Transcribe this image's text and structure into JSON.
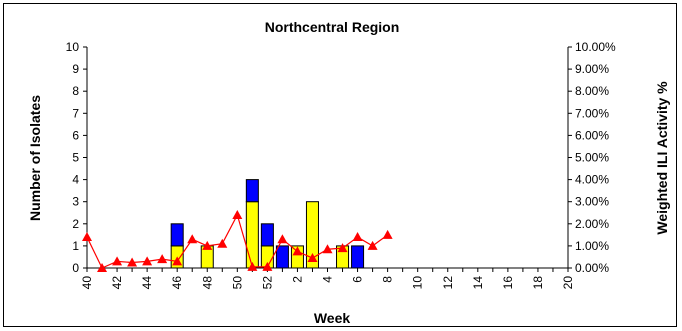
{
  "chart_data": {
    "type": "bar",
    "title": "Northcentral Region",
    "xlabel": "Week",
    "ylabel": "Number of Isolates",
    "y2label": "Weighted ILI Activity %",
    "ylim": [
      0,
      10
    ],
    "y2lim": [
      0,
      10
    ],
    "y_ticks": [
      "0",
      "1",
      "2",
      "3",
      "4",
      "5",
      "6",
      "7",
      "8",
      "9",
      "10"
    ],
    "y2_ticks": [
      "0.00%",
      "1.00%",
      "2.00%",
      "3.00%",
      "4.00%",
      "5.00%",
      "6.00%",
      "7.00%",
      "8.00%",
      "9.00%",
      "10.00%"
    ],
    "x_labeled_ticks": [
      "40",
      "42",
      "44",
      "46",
      "48",
      "50",
      "52",
      "2",
      "4",
      "6",
      "8",
      "10",
      "12",
      "14",
      "16",
      "18",
      "20"
    ],
    "weeks": [
      "40",
      "41",
      "42",
      "43",
      "44",
      "45",
      "46",
      "47",
      "48",
      "49",
      "50",
      "51",
      "52",
      "1",
      "2",
      "3",
      "4",
      "5",
      "6",
      "7",
      "8",
      "9",
      "10",
      "11",
      "12",
      "13",
      "14",
      "15",
      "16",
      "17",
      "18",
      "19",
      "20"
    ],
    "series": [
      {
        "type": "bar",
        "color": "#ffff00",
        "values": [
          0,
          0,
          0,
          0,
          0,
          0,
          1,
          0,
          1,
          0,
          0,
          3,
          1,
          0,
          1,
          3,
          0,
          1,
          0,
          0,
          0,
          0,
          0,
          0,
          0,
          0,
          0,
          0,
          0,
          0,
          0,
          0,
          0
        ]
      },
      {
        "type": "bar",
        "color": "#0000ff",
        "values": [
          0,
          0,
          0,
          0,
          0,
          0,
          1,
          0,
          0,
          0,
          0,
          1,
          1,
          1,
          0,
          0,
          0,
          0,
          1,
          0,
          0,
          0,
          0,
          0,
          0,
          0,
          0,
          0,
          0,
          0,
          0,
          0,
          0
        ]
      },
      {
        "type": "line",
        "axis": "right",
        "color": "#ff0000",
        "values": [
          1.4,
          0.0,
          0.3,
          0.25,
          0.3,
          0.4,
          0.3,
          1.3,
          1.0,
          1.1,
          2.4,
          0.05,
          0.05,
          1.3,
          0.75,
          0.45,
          0.85,
          0.9,
          1.4,
          1.0,
          1.5
        ]
      }
    ],
    "grid": false,
    "legend": "none"
  }
}
